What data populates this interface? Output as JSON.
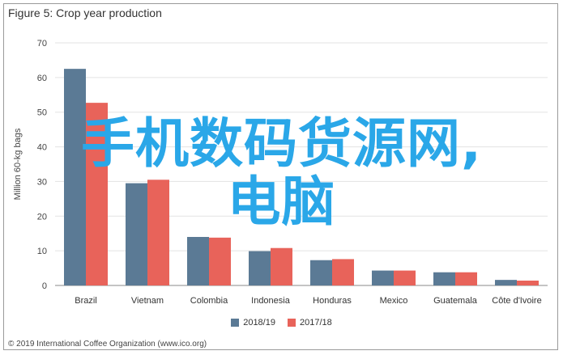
{
  "header": {
    "title": "Figure 5: Crop year production"
  },
  "footer": {
    "copyright": "© 2019 International Coffee Organization (www.ico.org)"
  },
  "watermark": {
    "line1": "手机数码货源网,",
    "line2": "电脑",
    "color": "#2aa7e8"
  },
  "chart_data": {
    "type": "bar",
    "title": "Figure 5: Crop year production",
    "ylabel": "Million 60-kg bags",
    "xlabel": "",
    "ylim": [
      0,
      70
    ],
    "yticks": [
      0,
      10,
      20,
      30,
      40,
      50,
      60,
      70
    ],
    "grid": "horizontal",
    "legend_position": "bottom",
    "categories": [
      "Brazil",
      "Vietnam",
      "Colombia",
      "Indonesia",
      "Honduras",
      "Mexico",
      "Guatemala",
      "Côte d'Ivoire"
    ],
    "series": [
      {
        "name": "2018/19",
        "color": "#5b7a95",
        "values": [
          62.5,
          29.5,
          14.0,
          9.9,
          7.3,
          4.3,
          3.8,
          1.6
        ]
      },
      {
        "name": "2017/18",
        "color": "#e8635a",
        "values": [
          52.7,
          30.5,
          13.8,
          10.8,
          7.6,
          4.3,
          3.8,
          1.4
        ]
      }
    ]
  }
}
